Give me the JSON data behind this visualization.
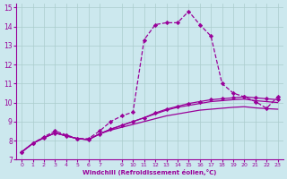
{
  "xlabel": "Windchill (Refroidissement éolien,°C)",
  "background_color": "#cce8ee",
  "grid_color": "#aacccc",
  "line_color": "#990099",
  "xlim": [
    -0.5,
    23.5
  ],
  "ylim": [
    7,
    15.2
  ],
  "xticks": [
    0,
    1,
    2,
    3,
    4,
    5,
    6,
    7,
    9,
    10,
    11,
    12,
    13,
    14,
    15,
    16,
    17,
    18,
    19,
    20,
    21,
    22,
    23
  ],
  "xticklabels": [
    "0",
    "1",
    "2",
    "3",
    "4",
    "5",
    "6",
    "7",
    "9",
    "10",
    "11",
    "12",
    "13",
    "14",
    "15",
    "16",
    "17",
    "18",
    "19",
    "20",
    "21",
    "22",
    "23"
  ],
  "yticks": [
    7,
    8,
    9,
    10,
    11,
    12,
    13,
    14,
    15
  ],
  "yticklabels": [
    "7",
    "8",
    "9",
    "10",
    "11",
    "12",
    "13",
    "14",
    "15"
  ],
  "line1_x": [
    0,
    1,
    2,
    3,
    4,
    5,
    6,
    7,
    8,
    9,
    10,
    11,
    12,
    13,
    14,
    15,
    16,
    17,
    18,
    19,
    20,
    21,
    22,
    23
  ],
  "line1_y": [
    7.4,
    7.85,
    8.15,
    8.4,
    8.25,
    8.1,
    8.05,
    8.35,
    8.55,
    8.7,
    8.85,
    9.0,
    9.15,
    9.3,
    9.4,
    9.5,
    9.6,
    9.65,
    9.7,
    9.75,
    9.78,
    9.72,
    9.68,
    9.65
  ],
  "line2_x": [
    0,
    1,
    2,
    3,
    4,
    5,
    6,
    7,
    8,
    9,
    10,
    11,
    12,
    13,
    14,
    15,
    16,
    17,
    18,
    19,
    20,
    21,
    22,
    23
  ],
  "line2_y": [
    7.4,
    7.85,
    8.15,
    8.4,
    8.25,
    8.1,
    8.05,
    8.35,
    8.6,
    8.8,
    9.0,
    9.2,
    9.4,
    9.6,
    9.75,
    9.85,
    9.95,
    10.05,
    10.1,
    10.15,
    10.18,
    10.1,
    10.05,
    10.0
  ],
  "line3_x": [
    0,
    1,
    2,
    3,
    4,
    5,
    6,
    7,
    8,
    9,
    10,
    11,
    12,
    13,
    14,
    15,
    16,
    17,
    18,
    19,
    20,
    21,
    22,
    23
  ],
  "line3_y": [
    7.4,
    7.85,
    8.15,
    8.4,
    8.25,
    8.1,
    8.05,
    8.35,
    8.6,
    8.8,
    9.0,
    9.2,
    9.45,
    9.65,
    9.8,
    9.95,
    10.05,
    10.15,
    10.2,
    10.25,
    10.3,
    10.25,
    10.2,
    10.15
  ],
  "line3_markers": [
    0,
    1,
    2,
    3,
    4,
    5,
    6,
    7,
    8,
    9,
    10,
    11,
    12,
    13,
    14,
    15,
    16,
    17,
    18,
    19,
    20,
    21,
    22,
    23
  ],
  "line4_x": [
    0,
    1,
    2,
    3,
    4,
    5,
    6,
    7,
    8,
    9,
    10,
    11,
    12,
    13,
    14,
    15,
    16,
    17,
    18,
    19,
    20,
    21,
    22,
    23
  ],
  "line4_y": [
    7.4,
    7.85,
    8.2,
    8.5,
    8.3,
    8.1,
    8.1,
    8.5,
    9.0,
    9.3,
    9.5,
    13.3,
    14.1,
    14.2,
    14.2,
    14.8,
    14.1,
    13.5,
    11.0,
    10.5,
    10.3,
    10.05,
    9.7,
    10.3
  ]
}
